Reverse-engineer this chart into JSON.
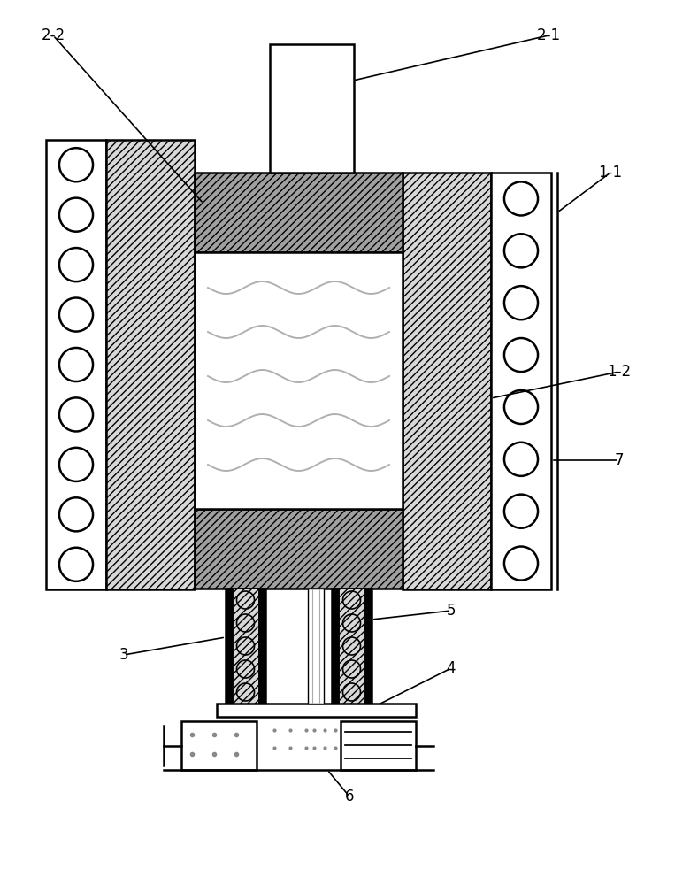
{
  "fig_width": 7.89,
  "fig_height": 10.0,
  "bg_color": "#ffffff",
  "line_color": "#000000",
  "wave_color": "#b0b0b0",
  "hatch_light": "////",
  "hatch_dark": "///",
  "grey_light": "#d8d8d8",
  "grey_dark": "#a0a0a0",
  "fontsize": 12
}
